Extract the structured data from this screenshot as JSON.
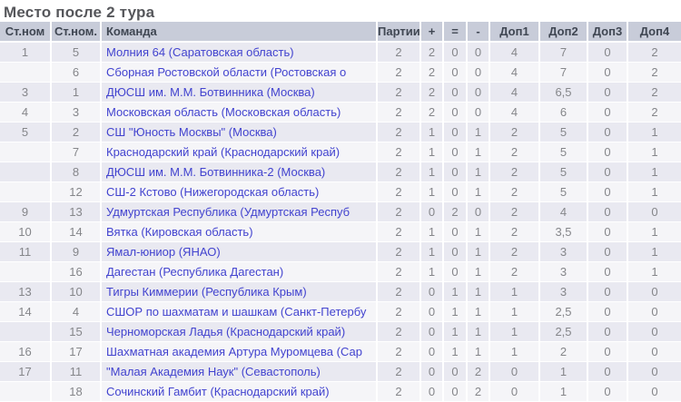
{
  "title": "Место после 2 тура",
  "colors": {
    "header_bg": "#c8ccd9",
    "row_odd": "#e9e9f1",
    "row_even": "#f5f5f8",
    "link": "#4243cf",
    "title_text": "#56575b",
    "header_text": "#3f4652",
    "number_text": "#85868a"
  },
  "table": {
    "columns": [
      "Ст.ном",
      "Ст.ном.",
      "Команда",
      "Партии",
      "+",
      "=",
      "-",
      "Доп1",
      "Доп2",
      "Доп3",
      "Доп4"
    ],
    "rows": [
      {
        "place": "1",
        "seed": "5",
        "team": "Молния 64 (Саратовская область)",
        "games": "2",
        "wins": "2",
        "draws": "0",
        "losses": "0",
        "dop1": "4",
        "dop2": "7",
        "dop3": "0",
        "dop4": "2"
      },
      {
        "place": "",
        "seed": "6",
        "team": "Сборная Ростовской области (Ростовская о",
        "games": "2",
        "wins": "2",
        "draws": "0",
        "losses": "0",
        "dop1": "4",
        "dop2": "7",
        "dop3": "0",
        "dop4": "2"
      },
      {
        "place": "3",
        "seed": "1",
        "team": "ДЮСШ им. М.М. Ботвинника (Москва)",
        "games": "2",
        "wins": "2",
        "draws": "0",
        "losses": "0",
        "dop1": "4",
        "dop2": "6,5",
        "dop3": "0",
        "dop4": "2"
      },
      {
        "place": "4",
        "seed": "3",
        "team": "Московская область (Московская область)",
        "games": "2",
        "wins": "2",
        "draws": "0",
        "losses": "0",
        "dop1": "4",
        "dop2": "6",
        "dop3": "0",
        "dop4": "2"
      },
      {
        "place": "5",
        "seed": "2",
        "team": "СШ \"Юность Москвы\" (Москва)",
        "games": "2",
        "wins": "1",
        "draws": "0",
        "losses": "1",
        "dop1": "2",
        "dop2": "5",
        "dop3": "0",
        "dop4": "1"
      },
      {
        "place": "",
        "seed": "7",
        "team": "Краснодарский край (Краснодарский край)",
        "games": "2",
        "wins": "1",
        "draws": "0",
        "losses": "1",
        "dop1": "2",
        "dop2": "5",
        "dop3": "0",
        "dop4": "1"
      },
      {
        "place": "",
        "seed": "8",
        "team": "ДЮСШ им. М.М. Ботвинника-2 (Москва)",
        "games": "2",
        "wins": "1",
        "draws": "0",
        "losses": "1",
        "dop1": "2",
        "dop2": "5",
        "dop3": "0",
        "dop4": "1"
      },
      {
        "place": "",
        "seed": "12",
        "team": "СШ-2 Кстово (Нижегородская область)",
        "games": "2",
        "wins": "1",
        "draws": "0",
        "losses": "1",
        "dop1": "2",
        "dop2": "5",
        "dop3": "0",
        "dop4": "1"
      },
      {
        "place": "9",
        "seed": "13",
        "team": "Удмуртская Республика (Удмуртская Респуб",
        "games": "2",
        "wins": "0",
        "draws": "2",
        "losses": "0",
        "dop1": "2",
        "dop2": "4",
        "dop3": "0",
        "dop4": "0"
      },
      {
        "place": "10",
        "seed": "14",
        "team": "Вятка (Кировская область)",
        "games": "2",
        "wins": "1",
        "draws": "0",
        "losses": "1",
        "dop1": "2",
        "dop2": "3,5",
        "dop3": "0",
        "dop4": "1"
      },
      {
        "place": "11",
        "seed": "9",
        "team": "Ямал-юниор (ЯНАО)",
        "games": "2",
        "wins": "1",
        "draws": "0",
        "losses": "1",
        "dop1": "2",
        "dop2": "3",
        "dop3": "0",
        "dop4": "1"
      },
      {
        "place": "",
        "seed": "16",
        "team": "Дагестан (Республика Дагестан)",
        "games": "2",
        "wins": "1",
        "draws": "0",
        "losses": "1",
        "dop1": "2",
        "dop2": "3",
        "dop3": "0",
        "dop4": "1"
      },
      {
        "place": "13",
        "seed": "10",
        "team": "Тигры Киммерии (Республика Крым)",
        "games": "2",
        "wins": "0",
        "draws": "1",
        "losses": "1",
        "dop1": "1",
        "dop2": "3",
        "dop3": "0",
        "dop4": "0"
      },
      {
        "place": "14",
        "seed": "4",
        "team": "СШОР по шахматам и шашкам (Санкт-Петербу",
        "games": "2",
        "wins": "0",
        "draws": "1",
        "losses": "1",
        "dop1": "1",
        "dop2": "2,5",
        "dop3": "0",
        "dop4": "0"
      },
      {
        "place": "",
        "seed": "15",
        "team": "Черноморская Ладья (Краснодарский край)",
        "games": "2",
        "wins": "0",
        "draws": "1",
        "losses": "1",
        "dop1": "1",
        "dop2": "2,5",
        "dop3": "0",
        "dop4": "0"
      },
      {
        "place": "16",
        "seed": "17",
        "team": "Шахматная академия Артура Муромцева (Сар",
        "games": "2",
        "wins": "0",
        "draws": "1",
        "losses": "1",
        "dop1": "1",
        "dop2": "2",
        "dop3": "0",
        "dop4": "0"
      },
      {
        "place": "17",
        "seed": "11",
        "team": "\"Малая Академия Наук\" (Севастополь)",
        "games": "2",
        "wins": "0",
        "draws": "0",
        "losses": "2",
        "dop1": "0",
        "dop2": "1",
        "dop3": "0",
        "dop4": "0"
      },
      {
        "place": "",
        "seed": "18",
        "team": "Сочинский Гамбит (Краснодарский край)",
        "games": "2",
        "wins": "0",
        "draws": "0",
        "losses": "2",
        "dop1": "0",
        "dop2": "1",
        "dop3": "0",
        "dop4": "0"
      }
    ]
  }
}
